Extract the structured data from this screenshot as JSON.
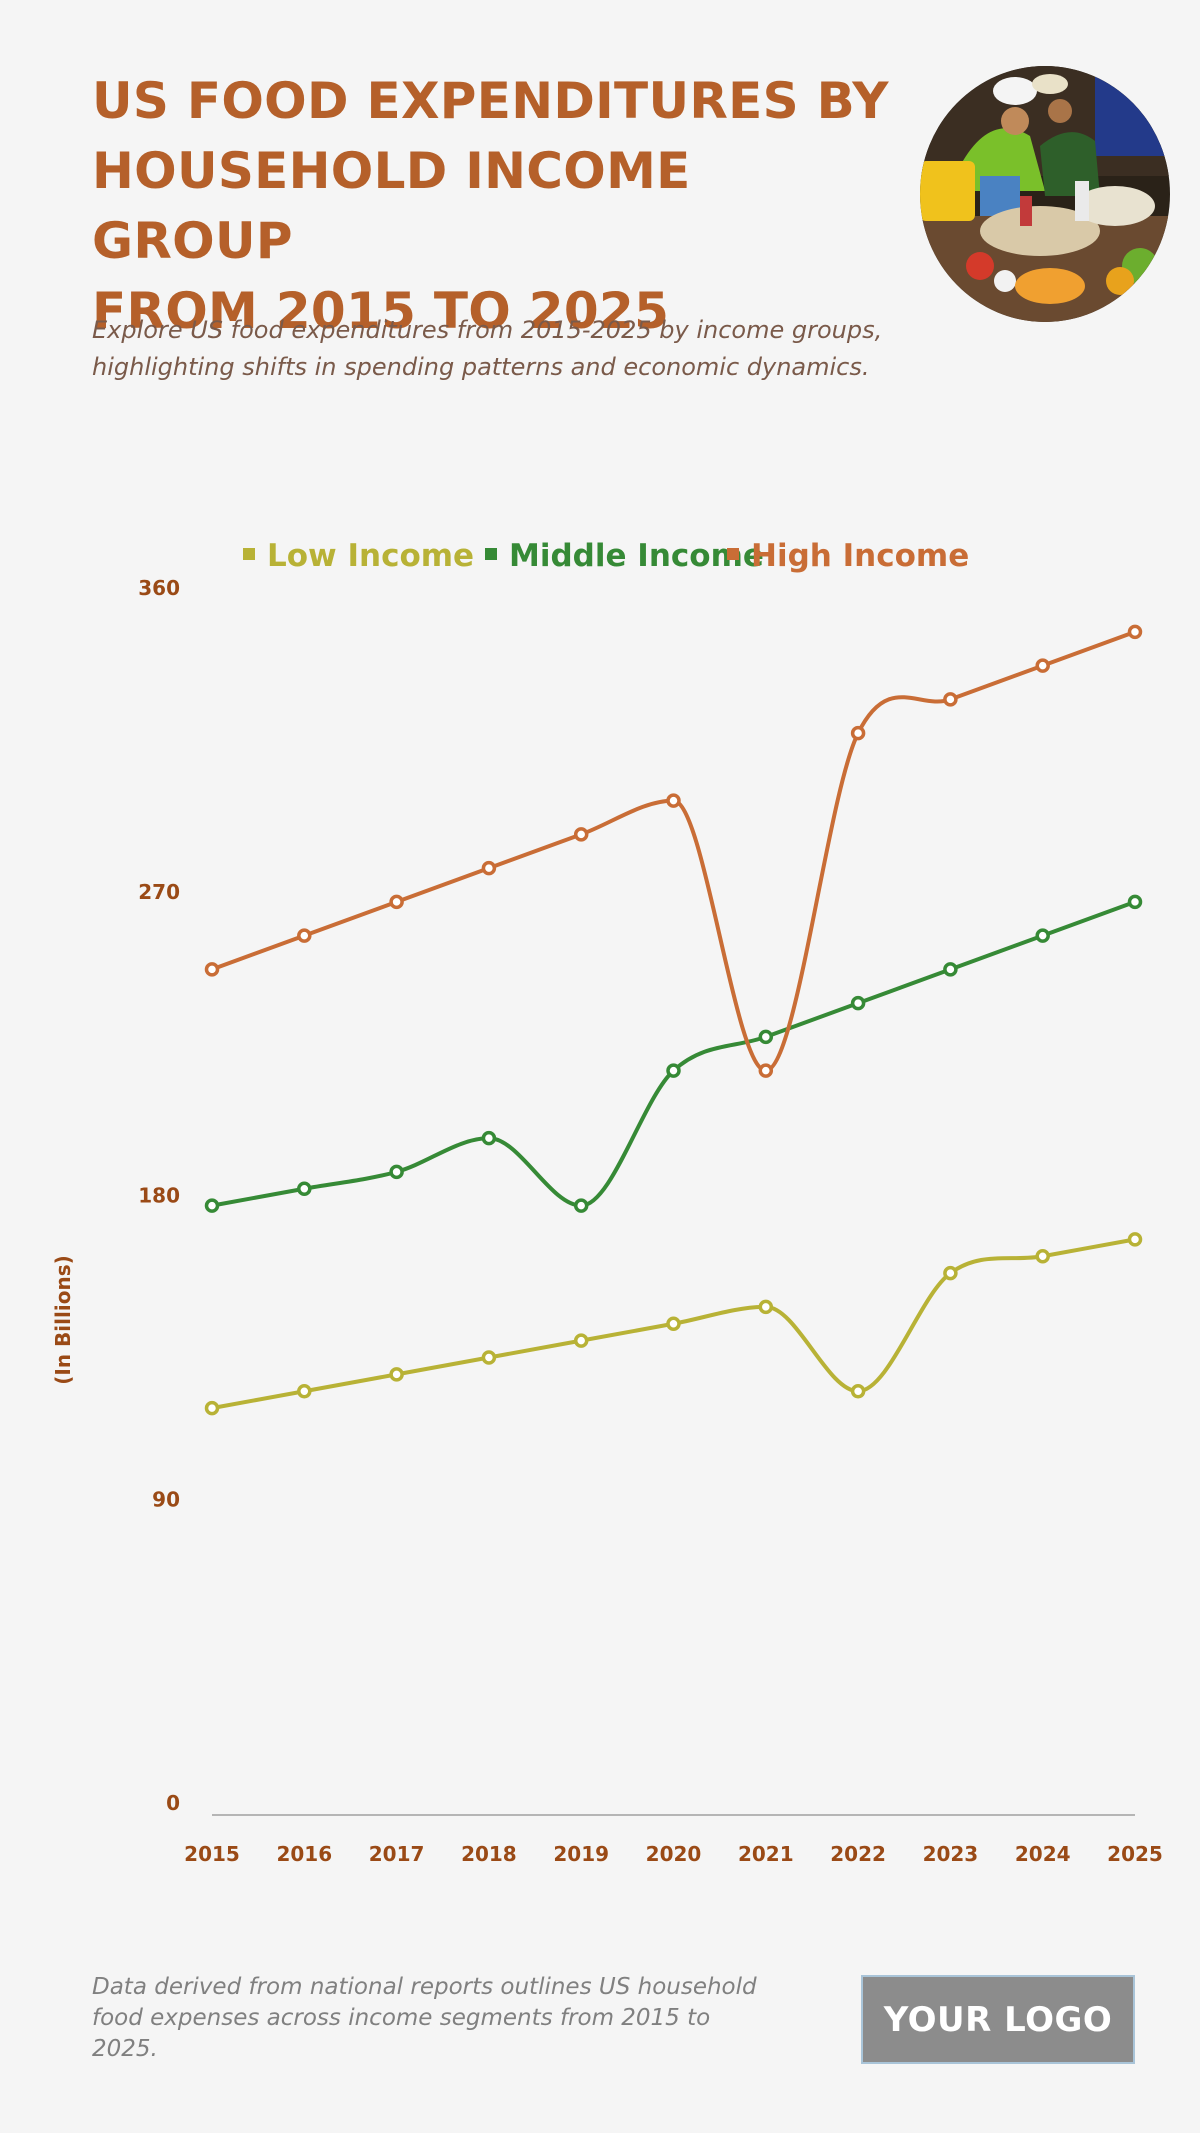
{
  "header": {
    "title_lines": [
      "US FOOD EXPENDITURES BY",
      "HOUSEHOLD INCOME GROUP",
      "FROM 2015 TO 2025"
    ],
    "subtitle_lines": [
      "Explore US food expenditures from 2015-2025 by income groups,",
      "highlighting shifts in spending patterns and economic dynamics."
    ]
  },
  "footer": {
    "note_lines": [
      "Data derived from national reports outlines US household",
      "food expenses across income segments from 2015 to",
      "2025."
    ],
    "logo_text": "YOUR LOGO"
  },
  "colors": {
    "title": "#b5602a",
    "axis_text": "#9a4a16",
    "low_income": "#b8b236",
    "middle_income": "#368a36",
    "high_income": "#c96d36"
  },
  "chart_data": {
    "type": "line",
    "categories": [
      "2015",
      "2016",
      "2017",
      "2018",
      "2019",
      "2020",
      "2021",
      "2022",
      "2023",
      "2024",
      "2025"
    ],
    "ylabel": "(In Billions)",
    "ylim": [
      0,
      360
    ],
    "yticks": [
      0,
      90,
      180,
      270,
      360
    ],
    "legend_position": "top-center",
    "grid": false,
    "series": [
      {
        "name": "Low Income",
        "color": "#b8b236",
        "values": [
          117,
          122,
          127,
          132,
          137,
          142,
          147,
          122,
          157,
          162,
          167
        ]
      },
      {
        "name": "Middle Income",
        "color": "#368a36",
        "values": [
          177,
          182,
          187,
          197,
          177,
          217,
          227,
          237,
          247,
          257,
          267
        ]
      },
      {
        "name": "High Income",
        "color": "#c96d36",
        "values": [
          247,
          257,
          267,
          277,
          287,
          297,
          217,
          317,
          327,
          337,
          347
        ]
      }
    ]
  }
}
